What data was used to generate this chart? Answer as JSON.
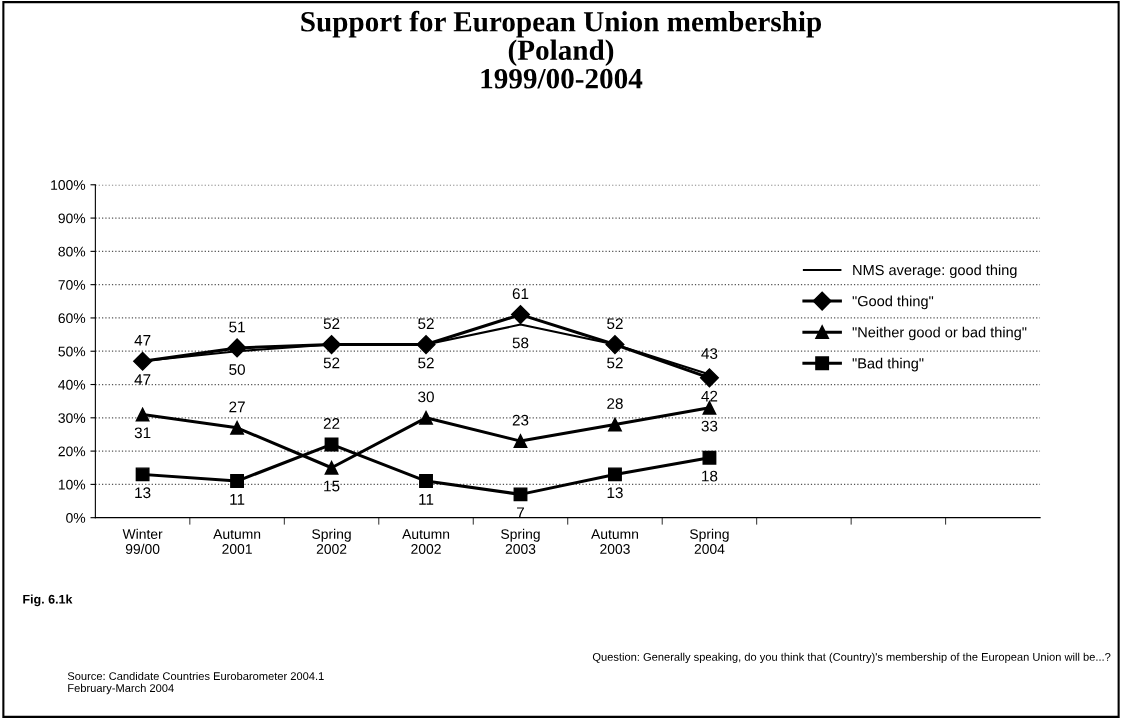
{
  "chart_data": {
    "type": "line",
    "title": "Support for European Union membership\n(Poland)\n1999/00-2004",
    "categories": [
      "Winter\n99/00",
      "Autumn\n2001",
      "Spring\n2002",
      "Autumn\n2002",
      "Spring\n2003",
      "Autumn\n2003",
      "Spring\n2004",
      null,
      null,
      null
    ],
    "series": [
      {
        "name": "NMS average: good thing",
        "color": "#000000",
        "marker": "none",
        "values": [
          47,
          50,
          52,
          52,
          58,
          52,
          43,
          null,
          null,
          null
        ]
      },
      {
        "name": "\"Good thing\"",
        "color": "#000000",
        "marker": "diamond",
        "values": [
          47,
          51,
          52,
          52,
          61,
          52,
          42,
          null,
          null,
          null
        ]
      },
      {
        "name": "\"Neither good or bad thing\"",
        "color": "#000000",
        "marker": "triangle",
        "values": [
          31,
          27,
          15,
          30,
          23,
          28,
          33,
          null,
          null,
          null
        ]
      },
      {
        "name": "\"Bad thing\"",
        "color": "#000000",
        "marker": "square",
        "values": [
          13,
          11,
          22,
          11,
          7,
          13,
          18,
          null,
          null,
          null
        ]
      }
    ],
    "ylim": [
      0,
      100
    ],
    "yticks": [
      {
        "value": 0,
        "label": "0%"
      },
      {
        "value": 10,
        "label": "10%"
      },
      {
        "value": 20,
        "label": "20%"
      },
      {
        "value": 30,
        "label": "30%"
      },
      {
        "value": 40,
        "label": "40%"
      },
      {
        "value": 50,
        "label": "50%"
      },
      {
        "value": 60,
        "label": "60%"
      },
      {
        "value": 70,
        "label": "70%"
      },
      {
        "value": 80,
        "label": "80%"
      },
      {
        "value": 90,
        "label": "90%"
      },
      {
        "value": 100,
        "label": "100%"
      }
    ],
    "grid": "y",
    "legend": "right",
    "data_labels": true,
    "line_style": "solid",
    "annotations": [
      "Fig. 6.1k",
      "Question: Generally speaking, do you think that (Country)'s membership of the European Union will be...?",
      "Source: Candidate Countries Eurobarometer 2004.1\nFebruary-March 2004"
    ]
  }
}
